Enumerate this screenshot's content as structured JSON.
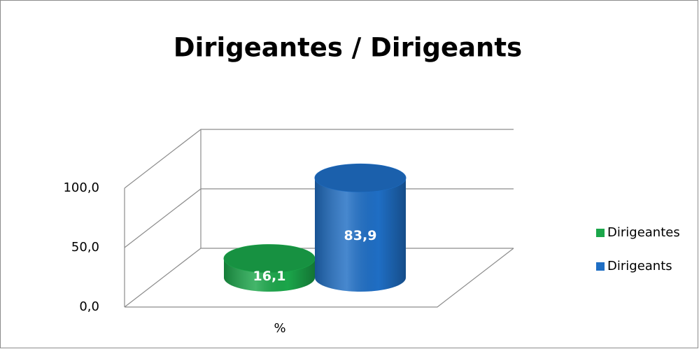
{
  "chart_data": {
    "type": "bar3d",
    "title": "Dirigeantes / Dirigeants",
    "categories": [
      "%"
    ],
    "series": [
      {
        "name": "Dirigeantes",
        "color": "#1ba64a",
        "values": [
          16.1
        ],
        "value_labels": [
          "16,1"
        ]
      },
      {
        "name": "Dirigeants",
        "color": "#1f6ec4",
        "values": [
          83.9
        ],
        "value_labels": [
          "83,9"
        ]
      }
    ],
    "ylim": [
      0,
      100
    ],
    "yticks": [
      {
        "value": 0,
        "label": "0,0"
      },
      {
        "value": 50,
        "label": "50,0"
      },
      {
        "value": 100,
        "label": "100,0"
      }
    ],
    "grid": true,
    "legend": "right"
  }
}
